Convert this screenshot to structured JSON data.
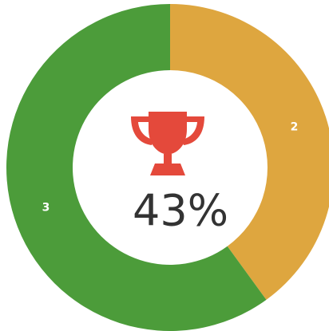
{
  "chart_data": {
    "type": "donut",
    "categories": [
      null,
      null
    ],
    "series": [
      {
        "name": null,
        "values": [
          2,
          3
        ],
        "colors": [
          "#dea63f",
          "#4c9c3a"
        ]
      }
    ],
    "center_label": "43%"
  }
}
